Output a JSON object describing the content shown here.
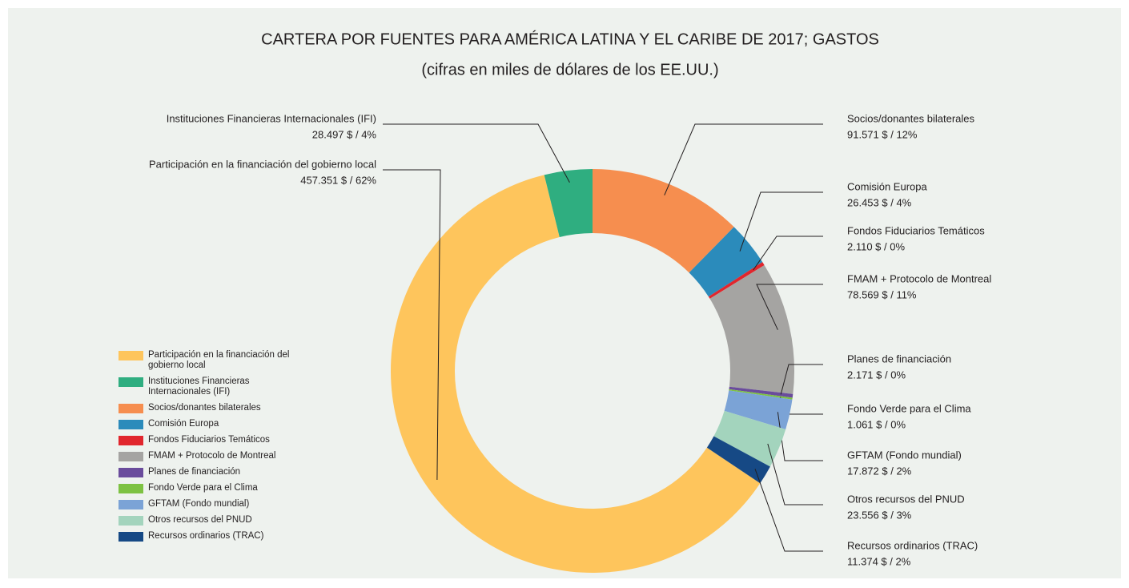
{
  "chart_data": {
    "type": "donut",
    "title": "CARTERA POR FUENTES PARA AMÉRICA LATINA Y EL CARIBE DE 2017; GASTOS",
    "subtitle": "(cifras en miles de dólares de los EE.UU.)",
    "categories": [
      "Participación en la financiación del gobierno local",
      "Instituciones Financieras Internacionales (IFI)",
      "Socios/donantes bilaterales",
      "Comisión Europa",
      "Fondos Fiduciarios Temáticos",
      "FMAM + Protocolo de Montreal",
      "Planes de financiación",
      "Fondo Verde para el Clima",
      "GFTAM (Fondo mundial)",
      "Otros recursos del PNUD",
      "Recursos ordinarios (TRAC)"
    ],
    "values": [
      457351,
      28497,
      91571,
      26453,
      2110,
      78569,
      2171,
      1061,
      17872,
      23556,
      11374
    ],
    "value_labels": [
      "457.351 $ / 62%",
      "28.497 $ / 4%",
      "91.571 $ / 12%",
      "26.453 $ / 4%",
      "2.110 $ / 0%",
      "78.569 $ / 11%",
      "2.171 $ / 0%",
      "1.061 $ / 0%",
      "17.872 $ / 2%",
      "23.556 $ / 3%",
      "11.374 $ / 2%"
    ],
    "colors": [
      "#fec55c",
      "#2fae80",
      "#f68e4f",
      "#2b8bbb",
      "#e1262d",
      "#a5a4a2",
      "#6a4c9c",
      "#7dc242",
      "#7ba3d6",
      "#a3d4bd",
      "#164985"
    ],
    "legend": "left"
  }
}
